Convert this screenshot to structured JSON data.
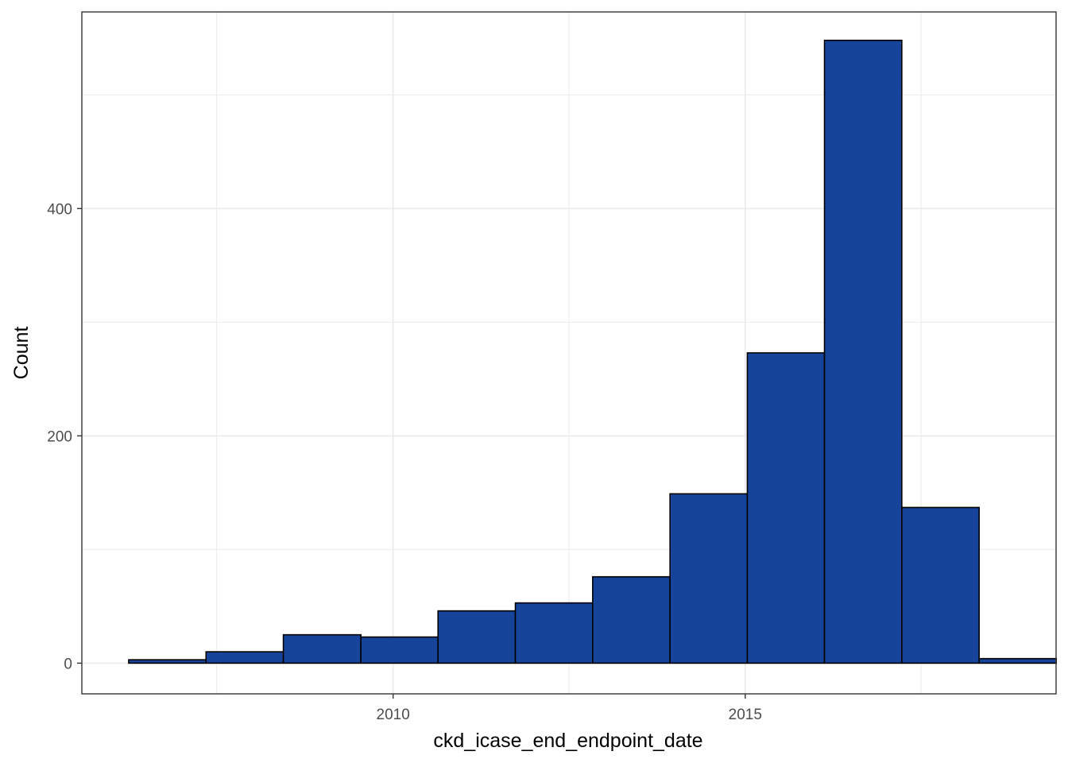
{
  "chart_data": {
    "type": "bar",
    "subtype": "histogram",
    "title": "",
    "xlabel": "ckd_icase_end_endpoint_date",
    "ylabel": "Count",
    "x_scale": "date",
    "xlim": [
      "2005-08-01",
      "2019-06-01"
    ],
    "ylim": [
      -27,
      573
    ],
    "x_ticks": [
      {
        "value": "2010-01-01",
        "label": "2010"
      },
      {
        "value": "2015-01-01",
        "label": "2015"
      }
    ],
    "y_ticks": [
      {
        "value": 0,
        "label": "0"
      },
      {
        "value": 200,
        "label": "200"
      },
      {
        "value": 400,
        "label": "400"
      }
    ],
    "y_minor_ticks": [
      100,
      300,
      500
    ],
    "x_minor_ticks": [
      "2007-07-01",
      "2012-07-01",
      "2017-07-01"
    ],
    "grid": true,
    "legend": "none",
    "bin_start": "2006-04-01",
    "bin_width_years": 1.1,
    "bins": [
      {
        "start": "2006-04-01",
        "end": "2007-05-07",
        "count": 3
      },
      {
        "start": "2007-05-07",
        "end": "2008-06-11",
        "count": 10
      },
      {
        "start": "2008-06-11",
        "end": "2009-07-18",
        "count": 25
      },
      {
        "start": "2009-07-18",
        "end": "2010-08-22",
        "count": 23
      },
      {
        "start": "2010-08-22",
        "end": "2011-09-27",
        "count": 46
      },
      {
        "start": "2011-09-27",
        "end": "2012-11-01",
        "count": 53
      },
      {
        "start": "2012-11-01",
        "end": "2013-12-07",
        "count": 76
      },
      {
        "start": "2013-12-07",
        "end": "2015-01-12",
        "count": 149
      },
      {
        "start": "2015-01-12",
        "end": "2016-02-16",
        "count": 273
      },
      {
        "start": "2016-02-16",
        "end": "2017-03-23",
        "count": 548
      },
      {
        "start": "2017-03-23",
        "end": "2018-04-28",
        "count": 137
      },
      {
        "start": "2018-04-28",
        "end": "2019-06-02",
        "count": 4
      }
    ],
    "colors": {
      "fill": "#17449B",
      "outline": "#000000",
      "grid": "#EBEBEB",
      "panel_border": "#333333",
      "tick_label": "#4D4D4D"
    }
  }
}
